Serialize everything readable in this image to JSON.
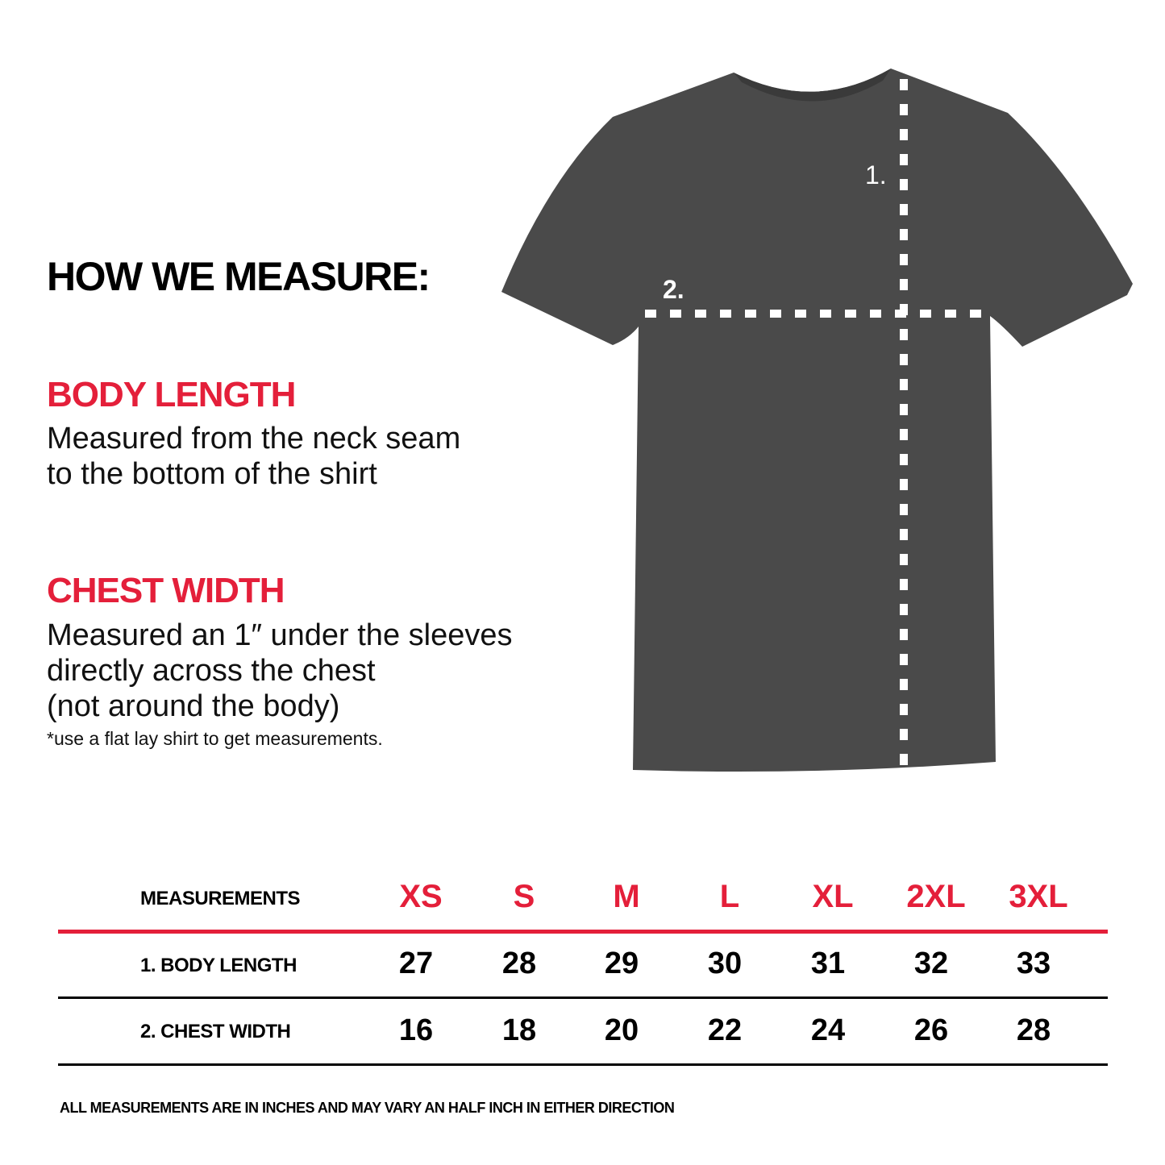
{
  "title": "HOW WE MEASURE:",
  "body_length": {
    "heading": "BODY LENGTH",
    "lines": [
      "Measured from the neck seam",
      "to the bottom of the shirt"
    ]
  },
  "chest_width": {
    "heading": "CHEST WIDTH",
    "lines": [
      "Measured an 1″ under the sleeves",
      "directly across the chest",
      "(not around the body)"
    ],
    "note": "*use a flat lay shirt to get measurements."
  },
  "diagram": {
    "marker_1": "1.",
    "marker_2": "2.",
    "shirt_color": "#4a4a4a"
  },
  "table": {
    "header_label": "MEASUREMENTS",
    "sizes": [
      "XS",
      "S",
      "M",
      "L",
      "XL",
      "2XL",
      "3XL"
    ],
    "rows": [
      {
        "label": "1. BODY LENGTH",
        "values": [
          "27",
          "28",
          "29",
          "30",
          "31",
          "32",
          "33"
        ]
      },
      {
        "label": "2. CHEST WIDTH",
        "values": [
          "16",
          "18",
          "20",
          "22",
          "24",
          "26",
          "28"
        ]
      }
    ]
  },
  "footer": "ALL MEASUREMENTS ARE IN INCHES AND MAY VARY AN HALF INCH IN EITHER DIRECTION",
  "colors": {
    "accent": "#e41f3a",
    "text": "#000000"
  }
}
